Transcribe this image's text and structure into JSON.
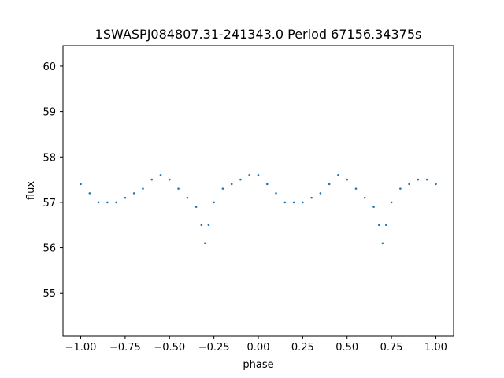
{
  "chart_data": {
    "type": "scatter",
    "title": "1SWASPJ084807.31-241343.0 Period 67156.34375s",
    "xlabel": "phase",
    "ylabel": "flux",
    "xlim": [
      -1.1,
      1.1
    ],
    "ylim": [
      54.05,
      60.45
    ],
    "xticks": [
      -1.0,
      -0.75,
      -0.5,
      -0.25,
      0.0,
      0.25,
      0.5,
      0.75,
      1.0
    ],
    "xtick_labels": [
      "−1.00",
      "−0.75",
      "−0.50",
      "−0.25",
      "0.00",
      "0.25",
      "0.50",
      "0.75",
      "1.00"
    ],
    "yticks": [
      55,
      56,
      57,
      58,
      59,
      60
    ],
    "ytick_labels": [
      "55",
      "56",
      "57",
      "58",
      "59",
      "60"
    ],
    "grid": false,
    "marker_color": "#1f77b4",
    "series": [
      {
        "x": [
          -1.0,
          -0.95,
          -0.9,
          -0.85,
          -0.8,
          -0.75,
          -0.7,
          -0.65,
          -0.6,
          -0.55,
          -0.5,
          -0.45,
          -0.4,
          -0.35,
          -0.32,
          -0.3,
          -0.28,
          -0.25,
          -0.2,
          -0.15,
          -0.1,
          -0.05,
          0.0,
          0.05,
          0.1,
          0.15,
          0.2,
          0.25,
          0.3,
          0.35,
          0.4,
          0.45,
          0.5,
          0.55,
          0.6,
          0.65,
          0.68,
          0.7,
          0.72,
          0.75,
          0.8,
          0.85,
          0.9,
          0.95,
          1.0
        ],
        "y": [
          57.4,
          57.2,
          57.0,
          57.0,
          57.0,
          57.1,
          57.2,
          57.3,
          57.5,
          57.6,
          57.5,
          57.3,
          57.1,
          56.9,
          56.5,
          56.1,
          56.5,
          57.0,
          57.3,
          57.4,
          57.5,
          57.6,
          57.6,
          57.4,
          57.2,
          57.0,
          57.0,
          57.0,
          57.1,
          57.2,
          57.4,
          57.6,
          57.5,
          57.3,
          57.1,
          56.9,
          56.5,
          56.1,
          56.5,
          57.0,
          57.3,
          57.4,
          57.5,
          57.5,
          57.4
        ]
      }
    ]
  }
}
